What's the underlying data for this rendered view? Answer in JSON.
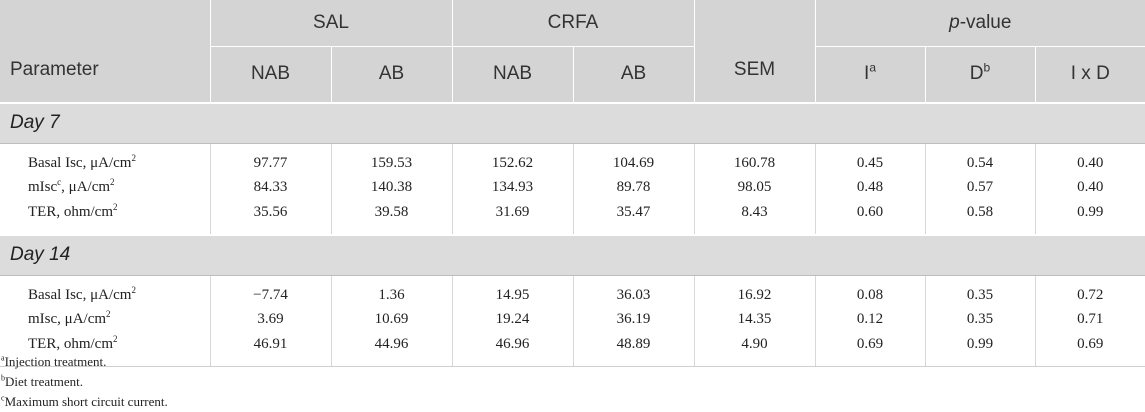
{
  "header": {
    "group_sal": "SAL",
    "group_crfa": "CRFA",
    "group_pvalue_italic": "p",
    "group_pvalue_rest": "-value",
    "parameter": "Parameter",
    "sal_nab": "NAB",
    "sal_ab": "AB",
    "crfa_nab": "NAB",
    "crfa_ab": "AB",
    "sem": "SEM",
    "i_label": "I",
    "i_sup": "a",
    "d_label": "D",
    "d_sup": "b",
    "ixd_label": "I x D"
  },
  "sections": [
    {
      "title": "Day 7",
      "rows": [
        {
          "param": "Basal Isc, μA/cm",
          "param_sup": "2",
          "values": [
            "97.77",
            "159.53",
            "152.62",
            "104.69",
            "160.78",
            "0.45",
            "0.54",
            "0.40"
          ]
        },
        {
          "param": "mIsc",
          "param_mid_sup": "c",
          "param_tail": ", μA/cm",
          "param_sup": "2",
          "values": [
            "84.33",
            "140.38",
            "134.93",
            "89.78",
            "98.05",
            "0.48",
            "0.57",
            "0.40"
          ]
        },
        {
          "param": "TER, ohm/cm",
          "param_sup": "2",
          "values": [
            "35.56",
            "39.58",
            "31.69",
            "35.47",
            "8.43",
            "0.60",
            "0.58",
            "0.99"
          ]
        }
      ]
    },
    {
      "title": "Day 14",
      "rows": [
        {
          "param": "Basal Isc, μA/cm",
          "param_sup": "2",
          "values": [
            "−7.74",
            "1.36",
            "14.95",
            "36.03",
            "16.92",
            "0.08",
            "0.35",
            "0.72"
          ]
        },
        {
          "param": "mIsc, μA/cm",
          "param_sup": "2",
          "values": [
            "3.69",
            "10.69",
            "19.24",
            "36.19",
            "14.35",
            "0.12",
            "0.35",
            "0.71"
          ]
        },
        {
          "param": "TER, ohm/cm",
          "param_sup": "2",
          "values": [
            "46.91",
            "44.96",
            "46.96",
            "48.89",
            "4.90",
            "0.69",
            "0.99",
            "0.69"
          ]
        }
      ]
    }
  ],
  "footnotes": [
    {
      "mark": "a",
      "text": "Injection treatment."
    },
    {
      "mark": "b",
      "text": "Diet treatment."
    },
    {
      "mark": "c",
      "text": "Maximum short circuit current."
    }
  ]
}
